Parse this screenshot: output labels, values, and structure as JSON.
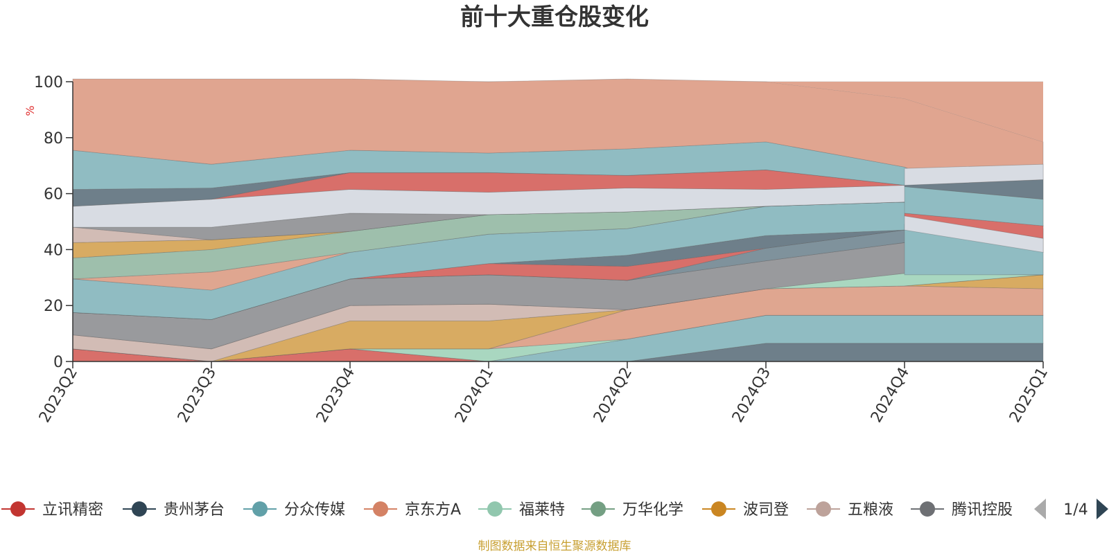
{
  "chart_data": {
    "type": "area",
    "title": "前十大重仓股变化",
    "ylabel": "%",
    "ylim": [
      0,
      100
    ],
    "yticks": [
      0,
      20,
      40,
      60,
      80,
      100
    ],
    "categories": [
      "2023Q2",
      "2023Q3",
      "2023Q4",
      "2024Q1",
      "2024Q2",
      "2024Q3",
      "2024Q4",
      "2025Q1"
    ],
    "grid": true,
    "legend_position": "bottom",
    "legend_page": "1/4",
    "legend": [
      {
        "name": "立讯精密",
        "color": "#c23531"
      },
      {
        "name": "贵州茅台",
        "color": "#2f4554"
      },
      {
        "name": "分众传媒",
        "color": "#61a0a8"
      },
      {
        "name": "京东方A",
        "color": "#d48265"
      },
      {
        "name": "福莱特",
        "color": "#91c7ae"
      },
      {
        "name": "万华化学",
        "color": "#749f83"
      },
      {
        "name": "波司登",
        "color": "#ca8622"
      },
      {
        "name": "五粮液",
        "color": "#bda29a"
      },
      {
        "name": "腾讯控股",
        "color": "#6e7074"
      }
    ],
    "bands": [
      {
        "color": "#6e7f8a",
        "values": [
          0,
          0,
          0,
          0,
          0,
          6.5,
          6.5,
          6.5
        ]
      },
      {
        "color": "#d86f6a",
        "values": [
          4.5,
          0,
          4.5,
          0,
          0,
          0,
          0,
          0
        ]
      },
      {
        "color": "#90bcc2",
        "values": [
          0,
          0,
          0,
          0,
          8,
          10,
          10,
          10
        ]
      },
      {
        "color": "#a9d7c0",
        "values": [
          0,
          0,
          0,
          4.5,
          0,
          0,
          0,
          0
        ]
      },
      {
        "color": "#dfa690",
        "values": [
          0,
          0,
          0,
          0,
          10.5,
          9.5,
          10.5,
          9.5
        ]
      },
      {
        "color": "#d8ab62",
        "values": [
          0,
          0,
          10,
          10,
          0,
          0,
          0,
          5
        ]
      },
      {
        "color": "#d2bcb5",
        "values": [
          5,
          4.5,
          5.5,
          6,
          0,
          0,
          0,
          0
        ]
      },
      {
        "color": "#a9d7c0",
        "values": [
          0,
          0,
          0,
          0,
          0,
          0,
          4.5,
          0
        ]
      },
      {
        "color": "#999a9d",
        "values": [
          8,
          10.5,
          9.5,
          10.5,
          10.5,
          10,
          11,
          8
        ]
      },
      {
        "color": "#d8ab62",
        "values": [
          0,
          0,
          0,
          0,
          0,
          0,
          0,
          0
        ]
      },
      {
        "color": "#7f929c",
        "values": [
          0,
          0,
          0,
          0,
          0,
          4.5,
          4.5,
          0
        ]
      },
      {
        "color": "#d86f6a",
        "values": [
          0,
          0,
          0,
          4,
          5,
          0,
          0,
          0
        ]
      },
      {
        "color": "#6e7f8a",
        "values": [
          0,
          0,
          0,
          0,
          4,
          4.5,
          0,
          0
        ]
      },
      {
        "color": "#90bcc2",
        "values": [
          12,
          10.5,
          9.5,
          10.5,
          9.5,
          10.5,
          10,
          0
        ]
      },
      {
        "color": "#dfa690",
        "values": [
          0,
          6.5,
          0,
          0,
          0,
          0,
          0,
          0
        ]
      },
      {
        "color": "#9ebfac",
        "values": [
          7.5,
          8,
          7.5,
          7,
          6,
          0,
          0,
          0
        ]
      },
      {
        "color": "#d8ab62",
        "values": [
          5.5,
          3.5,
          0,
          0,
          0,
          0,
          0,
          0
        ]
      },
      {
        "color": "#d2bcb5",
        "values": [
          5.5,
          0,
          0,
          0,
          0,
          0,
          0,
          0
        ]
      },
      {
        "color": "#999a9d",
        "values": [
          0,
          4.5,
          6.5,
          0,
          0,
          0,
          0,
          0
        ]
      },
      {
        "color": "#d8dce3",
        "values": [
          7.5,
          10,
          8.5,
          8,
          8.5,
          6,
          6,
          9.5
        ]
      },
      {
        "color": "#d86f6a",
        "values": [
          0,
          0,
          6,
          7,
          4.5,
          7,
          0,
          0
        ]
      },
      {
        "color": "#6e7f8a",
        "values": [
          6,
          4,
          0,
          0,
          0,
          0,
          0,
          0
        ]
      },
      {
        "color": "#90bcc2",
        "values": [
          14,
          8.5,
          8,
          7,
          9.5,
          10,
          6.5,
          0
        ]
      },
      {
        "color": "#e0a590",
        "values": [
          25.5,
          30.5,
          25.5,
          25.5,
          25,
          21.5,
          24.5,
          30
        ]
      }
    ],
    "overlay_bands": [
      {
        "color": "#90bcc2",
        "values": [
          null,
          null,
          null,
          null,
          null,
          null,
          49,
          47.5
        ],
        "base": [
          null,
          null,
          null,
          null,
          null,
          null,
          31,
          31
        ]
      },
      {
        "color": "#d8dce3",
        "values": [
          null,
          null,
          null,
          null,
          null,
          null,
          52.5,
          44
        ],
        "base": [
          null,
          null,
          null,
          null,
          null,
          null,
          47,
          39
        ]
      },
      {
        "color": "#d86f6a",
        "values": [
          null,
          null,
          null,
          null,
          null,
          null,
          53,
          48.5
        ],
        "base": [
          null,
          null,
          null,
          null,
          null,
          null,
          52,
          44
        ]
      },
      {
        "color": "#90bcc2",
        "values": [
          null,
          null,
          null,
          null,
          null,
          null,
          62.5,
          58
        ],
        "base": [
          null,
          null,
          null,
          null,
          null,
          null,
          53,
          48.5
        ]
      },
      {
        "color": "#6e7f8a",
        "values": [
          null,
          null,
          null,
          null,
          null,
          null,
          63,
          65
        ],
        "base": [
          null,
          null,
          null,
          null,
          null,
          null,
          62.5,
          58
        ]
      },
      {
        "color": "#d8dce3",
        "values": [
          null,
          null,
          null,
          null,
          null,
          null,
          69,
          70.5
        ],
        "base": [
          null,
          null,
          null,
          null,
          null,
          null,
          63,
          65
        ]
      }
    ]
  },
  "footer_note": "制图数据来自恒生聚源数据库"
}
